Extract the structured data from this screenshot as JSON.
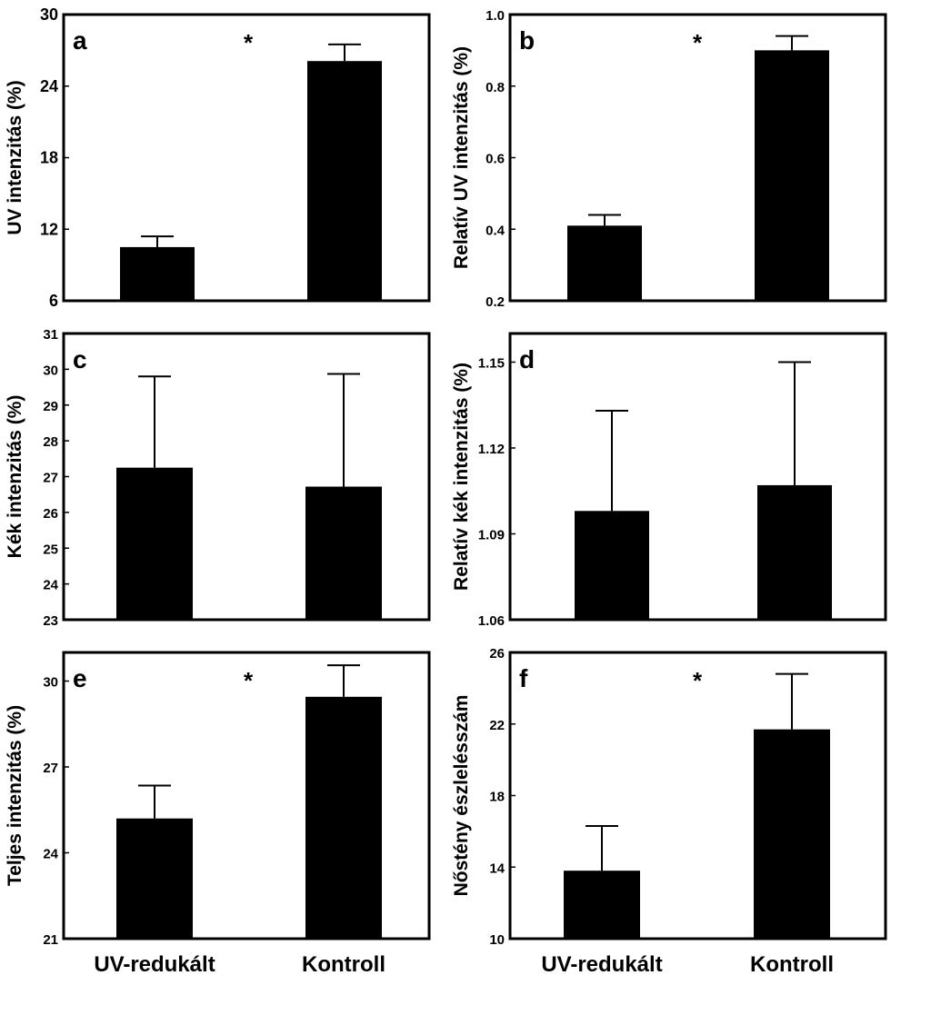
{
  "chart_data": [
    {
      "panel": "a",
      "type": "bar",
      "categories": [
        "UV-redukált",
        "Kontroll"
      ],
      "values": [
        10.5,
        26.1
      ],
      "errors": [
        0.9,
        1.4
      ],
      "ylabel": "UV intenzitás (%)",
      "ylim": [
        6,
        30
      ],
      "yticks": [
        "6",
        "12",
        "18",
        "24",
        "30"
      ],
      "significance": "*",
      "grid": false
    },
    {
      "panel": "b",
      "type": "bar",
      "categories": [
        "UV-redukált",
        "Kontroll"
      ],
      "values": [
        0.41,
        0.9
      ],
      "errors": [
        0.03,
        0.04
      ],
      "ylabel": "Relatív UV intenzitás (%)",
      "ylim": [
        0.2,
        1.0
      ],
      "yticks": [
        "0.2",
        "0.4",
        "0.6",
        "0.8",
        "1.0"
      ],
      "significance": "*",
      "grid": false
    },
    {
      "panel": "c",
      "type": "bar",
      "categories": [
        "UV-redukált",
        "Kontroll"
      ],
      "values": [
        27.25,
        26.72
      ],
      "errors": [
        2.55,
        3.15
      ],
      "ylabel": "Kék intenzitás (%)",
      "ylim": [
        23,
        31
      ],
      "yticks": [
        "23",
        "24",
        "25",
        "26",
        "27",
        "28",
        "29",
        "30",
        "31"
      ],
      "significance": "",
      "grid": false
    },
    {
      "panel": "d",
      "type": "bar",
      "categories": [
        "UV-redukált",
        "Kontroll"
      ],
      "values": [
        1.098,
        1.107
      ],
      "errors": [
        0.035,
        0.043
      ],
      "ylabel": "Relatív kék intenzitás (%)",
      "ylim": [
        1.06,
        1.16
      ],
      "yticks": [
        "1.06",
        "1.09",
        "1.12",
        "1.15"
      ],
      "significance": "",
      "grid": false
    },
    {
      "panel": "e",
      "type": "bar",
      "categories": [
        "UV-redukált",
        "Kontroll"
      ],
      "values": [
        25.2,
        29.45
      ],
      "errors": [
        1.15,
        1.1
      ],
      "ylabel": "Teljes intenzitás (%)",
      "ylim": [
        21,
        31
      ],
      "yticks": [
        "21",
        "24",
        "27",
        "30"
      ],
      "significance": "*",
      "grid": false
    },
    {
      "panel": "f",
      "type": "bar",
      "categories": [
        "UV-redukált",
        "Kontroll"
      ],
      "values": [
        13.8,
        21.7
      ],
      "errors": [
        2.5,
        3.1
      ],
      "ylabel": "Nőstény észlelésszám",
      "ylim": [
        10,
        26
      ],
      "yticks": [
        "10",
        "14",
        "18",
        "22",
        "26"
      ],
      "significance": "*",
      "grid": false
    }
  ]
}
